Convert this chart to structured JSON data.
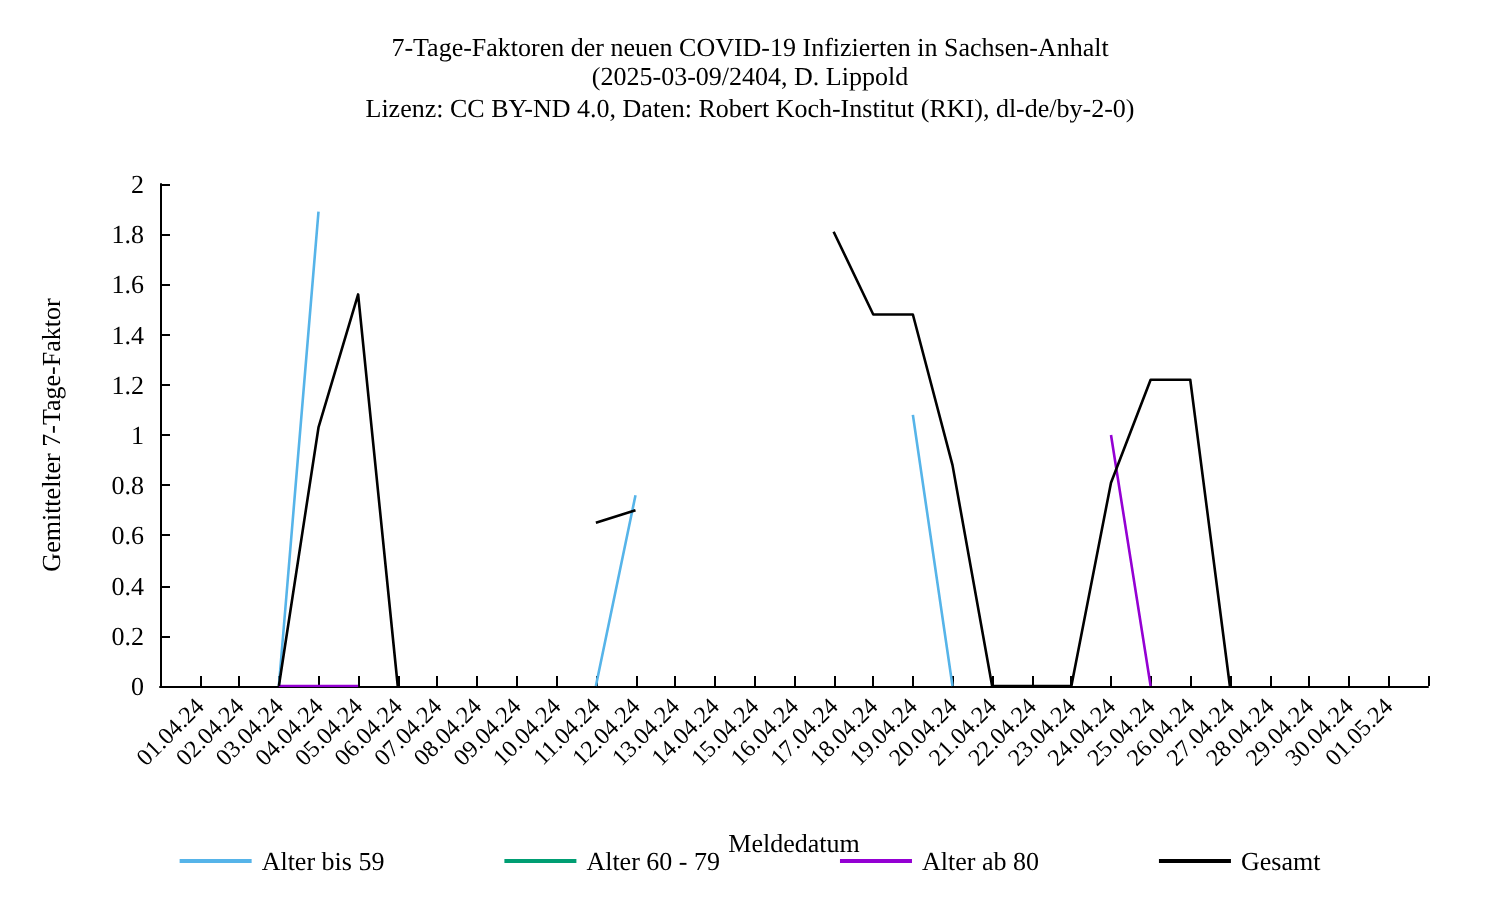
{
  "chart_data": {
    "type": "line",
    "title": "7-Tage-Faktoren der neuen COVID-19 Infizierten in Sachsen-Anhalt",
    "subtitle": "(2025-03-09/2404, D. Lippold\nLizenz: CC BY-ND 4.0, Daten: Robert Koch-Institut (RKI), dl-de/by-2-0)",
    "xlabel": "Meldedatum",
    "ylabel": "Gemittelter 7-Tage-Faktor",
    "categories": [
      null,
      "01.04.24",
      "02.04.24",
      "03.04.24",
      "04.04.24",
      "05.04.24",
      "06.04.24",
      "07.04.24",
      "08.04.24",
      "09.04.24",
      "10.04.24",
      "11.04.24",
      "12.04.24",
      "13.04.24",
      "14.04.24",
      "15.04.24",
      "16.04.24",
      "17.04.24",
      "18.04.24",
      "19.04.24",
      "20.04.24",
      "21.04.24",
      "22.04.24",
      "23.04.24",
      "24.04.24",
      "25.04.24",
      "26.04.24",
      "27.04.24",
      "28.04.24",
      "29.04.24",
      "30.04.24",
      "01.05.24",
      null
    ],
    "series": [
      {
        "name": "Alter bis 59",
        "color": "#56b4e9",
        "values": [
          null,
          null,
          null,
          0,
          1.89,
          null,
          null,
          null,
          null,
          null,
          null,
          0,
          0.76,
          null,
          null,
          null,
          null,
          null,
          null,
          1.08,
          0,
          null,
          null,
          null,
          null,
          null,
          null,
          null,
          null,
          null,
          null,
          null,
          null
        ]
      },
      {
        "name": "Alter 60 - 79",
        "color": "#009e73",
        "values": [
          null,
          null,
          null,
          null,
          null,
          null,
          null,
          null,
          null,
          null,
          null,
          null,
          null,
          null,
          null,
          null,
          null,
          null,
          null,
          null,
          null,
          null,
          null,
          null,
          null,
          null,
          null,
          null,
          null,
          null,
          null,
          null,
          null
        ]
      },
      {
        "name": "Alter ab 80",
        "color": "#9400d3",
        "values": [
          null,
          null,
          null,
          0,
          0,
          0,
          null,
          null,
          null,
          null,
          null,
          null,
          null,
          null,
          null,
          null,
          null,
          null,
          null,
          null,
          null,
          null,
          null,
          null,
          1.0,
          0,
          null,
          null,
          null,
          null,
          null,
          null,
          null
        ]
      },
      {
        "name": "Gesamt",
        "color": "#000000",
        "values": [
          null,
          null,
          null,
          0,
          1.03,
          1.56,
          0,
          null,
          null,
          null,
          null,
          0.65,
          0.7,
          null,
          null,
          null,
          null,
          1.81,
          1.48,
          1.48,
          0.88,
          0,
          0,
          0,
          0.81,
          1.22,
          1.22,
          0,
          null,
          null,
          null,
          null,
          null
        ]
      }
    ],
    "ylim": [
      0,
      2
    ],
    "yticks": [
      0,
      0.2,
      0.4,
      0.6,
      0.8,
      1,
      1.2,
      1.4,
      1.6,
      1.8,
      2
    ],
    "grid": false,
    "legend": "bottom",
    "marker": "none",
    "line_style": "solid"
  }
}
